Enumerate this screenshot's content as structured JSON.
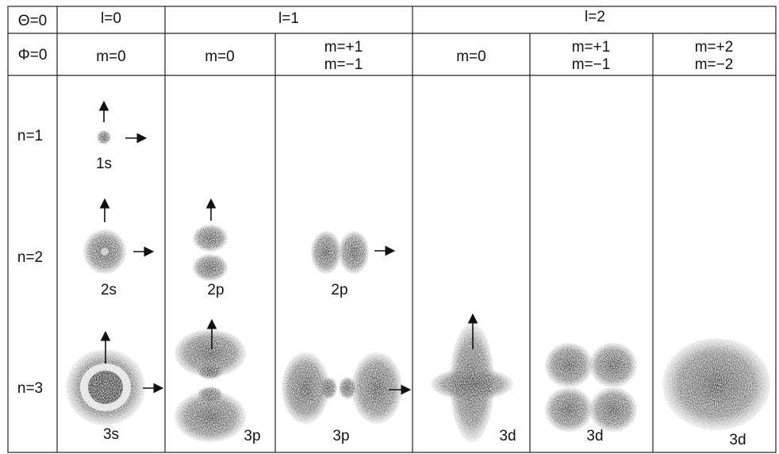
{
  "header": {
    "theta": "Θ=0",
    "phi": "Φ=0",
    "l_groups": [
      "l=0",
      "l=1",
      "l=2"
    ],
    "m_labels": [
      [
        "m=0"
      ],
      [
        "m=0"
      ],
      [
        "m=+1",
        "m=−1"
      ],
      [
        "m=0"
      ],
      [
        "m=+1",
        "m=−1"
      ],
      [
        "m=+2",
        "m=−2"
      ]
    ]
  },
  "rows": [
    {
      "n": "n=1",
      "cells": [
        "1s",
        null,
        null,
        null,
        null,
        null
      ]
    },
    {
      "n": "n=2",
      "cells": [
        "2s",
        "2p",
        "2p",
        null,
        null,
        null
      ]
    },
    {
      "n": "n=3",
      "cells": [
        "3s",
        "3p",
        "3p",
        "3d",
        "3d",
        "3d"
      ]
    }
  ]
}
